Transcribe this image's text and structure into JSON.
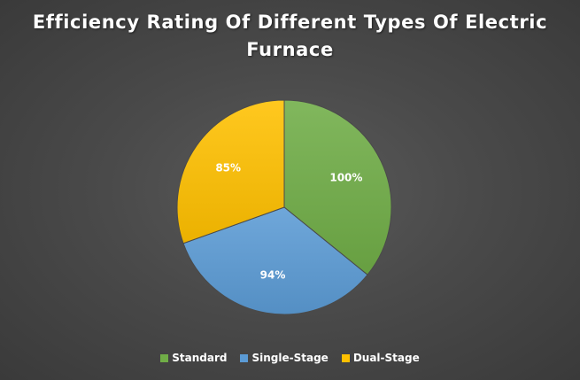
{
  "chart_data": {
    "type": "pie",
    "title": "Efficiency Rating Of Different Types Of Electric Furnace",
    "categories": [
      "Standard",
      "Single-Stage",
      "Dual-Stage"
    ],
    "values": [
      100,
      94,
      85
    ],
    "data_labels": [
      "100%",
      "94%",
      "85%"
    ],
    "colors": [
      "#70ad47",
      "#5b9bd5",
      "#ffc000"
    ],
    "start_angle_deg": 0,
    "direction": "clockwise",
    "legend_position": "bottom"
  }
}
